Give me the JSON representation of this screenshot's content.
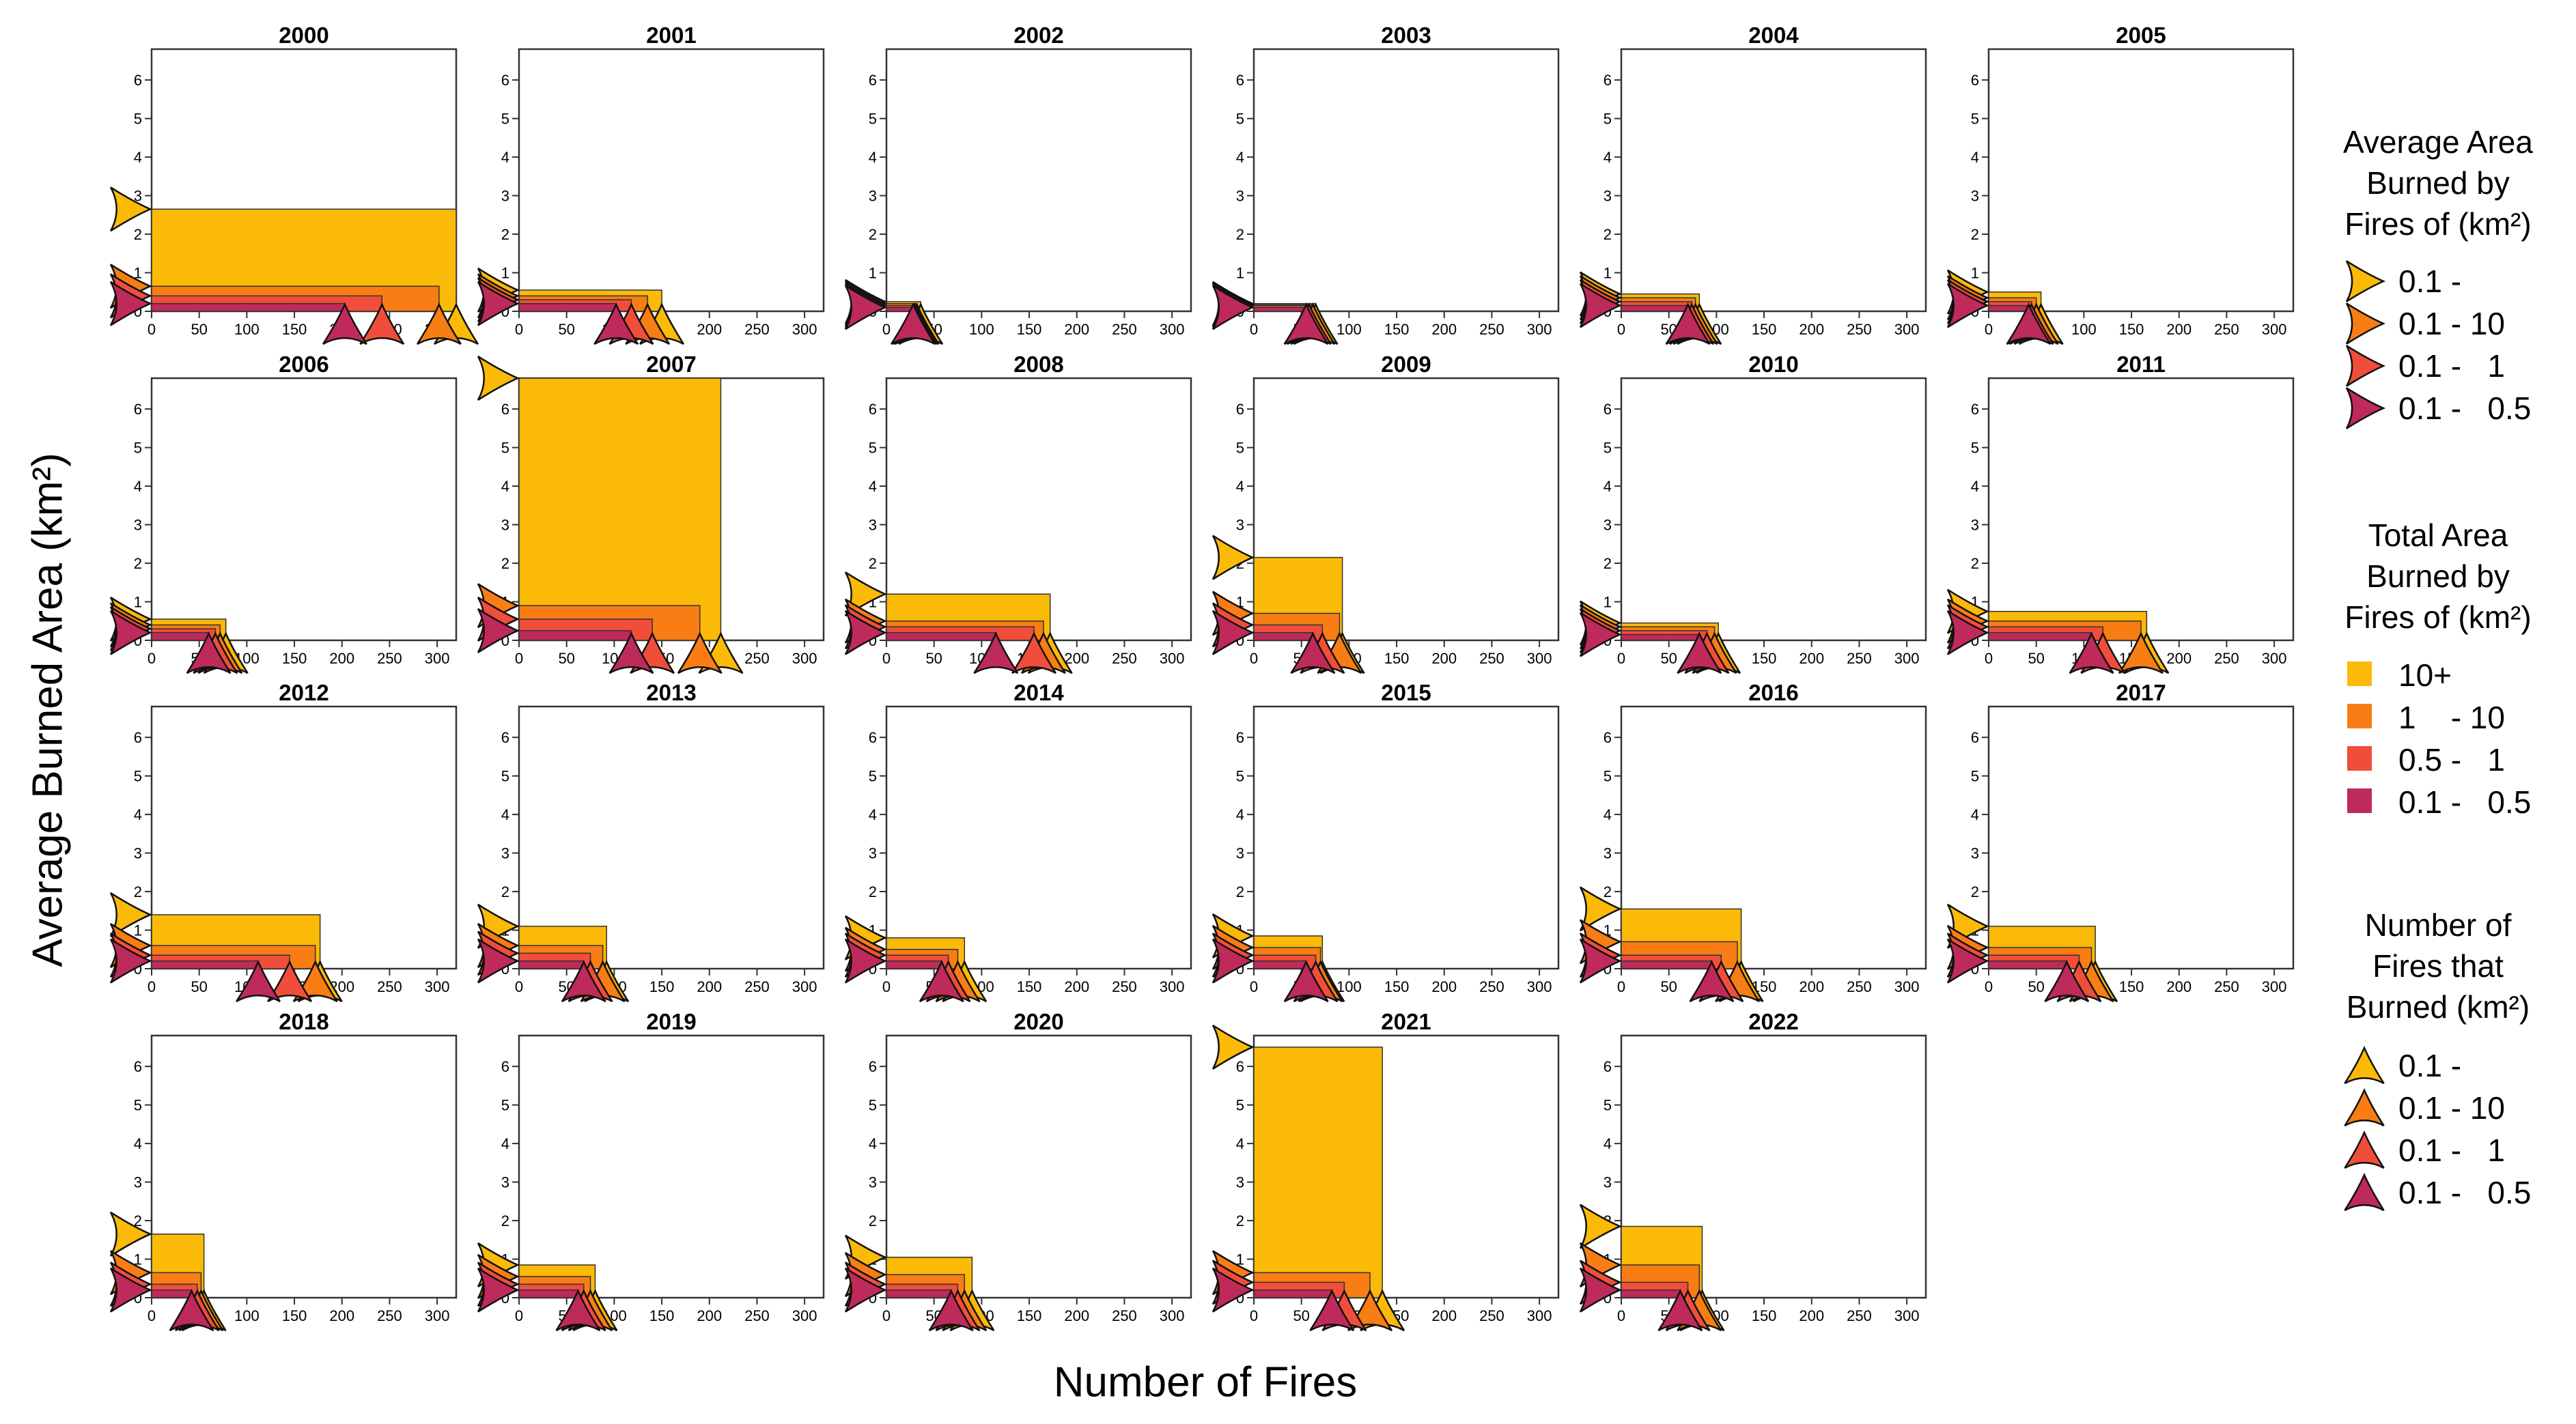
{
  "chart_data": {
    "type": "bar",
    "xlabel": "Number of Fires",
    "ylabel": "Average Burned Area (km²)",
    "xlim": [
      0,
      320
    ],
    "ylim": [
      0,
      6.8
    ],
    "xticks": [
      0,
      50,
      100,
      150,
      200,
      250,
      300
    ],
    "yticks": [
      0,
      1,
      2,
      3,
      4,
      5,
      6
    ],
    "categories": [
      "10+",
      "1 - 10",
      "0.5 - 1",
      "0.1 - 0.5"
    ],
    "colors": [
      "#FBBA07",
      "#F77D14",
      "#F04E3A",
      "#BE2A5A"
    ],
    "panels": [
      {
        "year": "2000",
        "counts": [
          322,
          302,
          242,
          203
        ],
        "avgs": [
          2.65,
          0.65,
          0.4,
          0.2
        ]
      },
      {
        "year": "2001",
        "counts": [
          150,
          135,
          118,
          102
        ],
        "avgs": [
          0.55,
          0.4,
          0.3,
          0.2
        ]
      },
      {
        "year": "2002",
        "counts": [
          36,
          32,
          30,
          28
        ],
        "avgs": [
          0.25,
          0.2,
          0.15,
          0.1
        ]
      },
      {
        "year": "2003",
        "counts": [
          65,
          62,
          58,
          55
        ],
        "avgs": [
          0.2,
          0.17,
          0.15,
          0.1
        ]
      },
      {
        "year": "2004",
        "counts": [
          82,
          78,
          74,
          70
        ],
        "avgs": [
          0.45,
          0.35,
          0.25,
          0.15
        ]
      },
      {
        "year": "2005",
        "counts": [
          55,
          50,
          45,
          42
        ],
        "avgs": [
          0.5,
          0.35,
          0.25,
          0.15
        ]
      },
      {
        "year": "2006",
        "counts": [
          78,
          72,
          67,
          60
        ],
        "avgs": [
          0.55,
          0.4,
          0.3,
          0.2
        ]
      },
      {
        "year": "2007",
        "counts": [
          212,
          190,
          140,
          118
        ],
        "avgs": [
          6.85,
          0.9,
          0.55,
          0.25
        ]
      },
      {
        "year": "2008",
        "counts": [
          172,
          165,
          155,
          115
        ],
        "avgs": [
          1.2,
          0.5,
          0.35,
          0.2
        ]
      },
      {
        "year": "2009",
        "counts": [
          93,
          90,
          72,
          62
        ],
        "avgs": [
          2.15,
          0.7,
          0.4,
          0.2
        ]
      },
      {
        "year": "2010",
        "counts": [
          102,
          98,
          90,
          82
        ],
        "avgs": [
          0.45,
          0.35,
          0.25,
          0.15
        ]
      },
      {
        "year": "2011",
        "counts": [
          166,
          160,
          120,
          108
        ],
        "avgs": [
          0.75,
          0.5,
          0.35,
          0.2
        ]
      },
      {
        "year": "2012",
        "counts": [
          177,
          172,
          145,
          112
        ],
        "avgs": [
          1.4,
          0.6,
          0.35,
          0.2
        ]
      },
      {
        "year": "2013",
        "counts": [
          92,
          88,
          75,
          68
        ],
        "avgs": [
          1.1,
          0.6,
          0.4,
          0.2
        ]
      },
      {
        "year": "2014",
        "counts": [
          82,
          75,
          65,
          58
        ],
        "avgs": [
          0.8,
          0.5,
          0.35,
          0.2
        ]
      },
      {
        "year": "2015",
        "counts": [
          72,
          70,
          65,
          55
        ],
        "avgs": [
          0.85,
          0.55,
          0.35,
          0.2
        ]
      },
      {
        "year": "2016",
        "counts": [
          126,
          122,
          105,
          95
        ],
        "avgs": [
          1.55,
          0.7,
          0.35,
          0.2
        ]
      },
      {
        "year": "2017",
        "counts": [
          112,
          108,
          95,
          82
        ],
        "avgs": [
          1.1,
          0.55,
          0.35,
          0.2
        ]
      },
      {
        "year": "2018",
        "counts": [
          55,
          52,
          48,
          42
        ],
        "avgs": [
          1.65,
          0.65,
          0.35,
          0.2
        ]
      },
      {
        "year": "2019",
        "counts": [
          80,
          75,
          68,
          62
        ],
        "avgs": [
          0.85,
          0.55,
          0.35,
          0.2
        ]
      },
      {
        "year": "2020",
        "counts": [
          90,
          82,
          75,
          68
        ],
        "avgs": [
          1.05,
          0.6,
          0.35,
          0.2
        ]
      },
      {
        "year": "2021",
        "counts": [
          135,
          122,
          95,
          82
        ],
        "avgs": [
          6.5,
          0.65,
          0.4,
          0.2
        ]
      },
      {
        "year": "2022",
        "counts": [
          85,
          82,
          70,
          62
        ],
        "avgs": [
          1.85,
          0.85,
          0.4,
          0.2
        ]
      }
    ],
    "legends": [
      {
        "title_lines": [
          "Average Area",
          "Burned by",
          "Fires of (km²)"
        ],
        "items": [
          "0.1 -",
          "0.1 - 10",
          "0.1 -   1",
          "0.1 -   0.5"
        ],
        "symbol": "arrow-right"
      },
      {
        "title_lines": [
          "Total Area",
          "Burned by",
          "Fires of (km²)"
        ],
        "items": [
          "10+",
          "1    - 10",
          "0.5 -   1",
          "0.1 -   0.5"
        ],
        "symbol": "square"
      },
      {
        "title_lines": [
          "Number of",
          "Fires that",
          "Burned (km²)"
        ],
        "items": [
          "0.1 -",
          "0.1 - 10",
          "0.1 -   1",
          "0.1 -   0.5"
        ],
        "symbol": "arrow-up"
      }
    ]
  }
}
